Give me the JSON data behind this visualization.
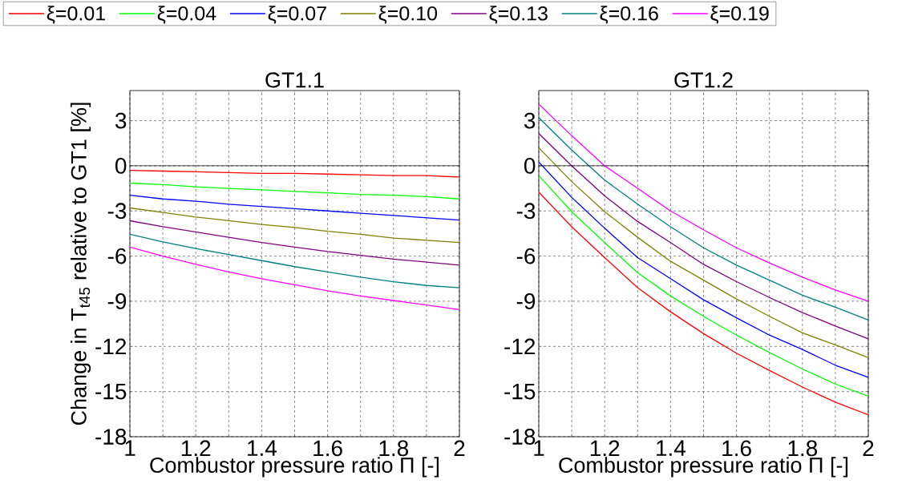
{
  "chart_data": [
    {
      "type": "line",
      "title": "GT1.1",
      "xlabel": "Combustor pressure ratio Π [-]",
      "ylabel": "Change in T$_{t45}$ relative to GT1 [%]",
      "x": [
        1,
        1.1,
        1.2,
        1.3,
        1.4,
        1.5,
        1.6,
        1.7,
        1.8,
        1.9,
        2
      ],
      "xlim": [
        1,
        2
      ],
      "ylim": [
        -18,
        5
      ],
      "xticks": [
        1,
        {
          "value": 1.1,
          "label": null
        },
        1.2,
        {
          "value": 1.3,
          "label": null
        },
        1.4,
        {
          "value": 1.5,
          "label": null
        },
        1.6,
        {
          "value": 1.7,
          "label": null
        },
        1.8,
        {
          "value": 1.9,
          "label": null
        },
        2
      ],
      "yticks": [
        -18,
        -15,
        -12,
        -9,
        -6,
        -3,
        0,
        3
      ],
      "grid": true,
      "legend": "top",
      "marker": "none",
      "line_style": "solid",
      "ref_lines": [
        {
          "axis": "y",
          "value": 0,
          "color": "#000000"
        }
      ],
      "series": [
        {
          "name": "ξ=0.01",
          "color": "#ff0000",
          "values": [
            -0.3,
            -0.35,
            -0.4,
            -0.45,
            -0.5,
            -0.5,
            -0.55,
            -0.6,
            -0.65,
            -0.65,
            -0.75
          ]
        },
        {
          "name": "ξ=0.04",
          "color": "#00ff00",
          "values": [
            -1.15,
            -1.25,
            -1.4,
            -1.5,
            -1.6,
            -1.7,
            -1.8,
            -1.9,
            -1.95,
            -2.05,
            -2.2
          ]
        },
        {
          "name": "ξ=0.07",
          "color": "#0000ff",
          "values": [
            -1.95,
            -2.2,
            -2.35,
            -2.55,
            -2.7,
            -2.85,
            -3.0,
            -3.15,
            -3.3,
            -3.45,
            -3.6
          ]
        },
        {
          "name": "ξ=0.10",
          "color": "#808000",
          "values": [
            -2.8,
            -3.1,
            -3.4,
            -3.65,
            -3.9,
            -4.1,
            -4.35,
            -4.55,
            -4.8,
            -4.95,
            -5.1
          ]
        },
        {
          "name": "ξ=0.13",
          "color": "#800080",
          "values": [
            -3.65,
            -4.05,
            -4.4,
            -4.75,
            -5.1,
            -5.4,
            -5.7,
            -5.95,
            -6.2,
            -6.4,
            -6.6
          ]
        },
        {
          "name": "ξ=0.16",
          "color": "#008080",
          "values": [
            -4.55,
            -5.05,
            -5.5,
            -5.9,
            -6.3,
            -6.7,
            -7.05,
            -7.4,
            -7.7,
            -7.95,
            -8.1
          ]
        },
        {
          "name": "ξ=0.19",
          "color": "#ff00ff",
          "values": [
            -5.4,
            -6.0,
            -6.55,
            -7.05,
            -7.5,
            -7.9,
            -8.3,
            -8.65,
            -8.95,
            -9.25,
            -9.55
          ]
        }
      ]
    },
    {
      "type": "line",
      "title": "GT1.2",
      "xlabel": "Combustor pressure ratio Π [-]",
      "x": [
        1,
        1.1,
        1.2,
        1.3,
        1.4,
        1.5,
        1.6,
        1.7,
        1.8,
        1.9,
        2
      ],
      "xlim": [
        1,
        2
      ],
      "ylim": [
        -18,
        5
      ],
      "xticks": [
        1,
        {
          "value": 1.1,
          "label": null
        },
        1.2,
        {
          "value": 1.3,
          "label": null
        },
        1.4,
        {
          "value": 1.5,
          "label": null
        },
        1.6,
        {
          "value": 1.7,
          "label": null
        },
        1.8,
        {
          "value": 1.9,
          "label": null
        },
        2
      ],
      "yticks": [
        -18,
        -15,
        -12,
        -9,
        -6,
        -3,
        0,
        3
      ],
      "grid": true,
      "marker": "none",
      "line_style": "solid",
      "ref_lines": [
        {
          "axis": "y",
          "value": 0,
          "color": "#000000"
        }
      ],
      "series": [
        {
          "color": "#ff0000",
          "values": [
            -1.75,
            -4.05,
            -6.1,
            -8.1,
            -9.7,
            -11.15,
            -12.45,
            -13.6,
            -14.7,
            -15.7,
            -16.55
          ]
        },
        {
          "color": "#00ff00",
          "values": [
            -0.65,
            -3.05,
            -5.1,
            -7.1,
            -8.65,
            -10.0,
            -11.25,
            -12.4,
            -13.5,
            -14.5,
            -15.3
          ]
        },
        {
          "color": "#0000ff",
          "values": [
            0.25,
            -2.1,
            -4.15,
            -6.1,
            -7.5,
            -8.9,
            -10.1,
            -11.25,
            -12.2,
            -13.25,
            -14.05
          ]
        },
        {
          "color": "#808000",
          "values": [
            1.2,
            -1.05,
            -3.05,
            -4.75,
            -6.35,
            -7.6,
            -8.85,
            -10.0,
            -11.1,
            -11.9,
            -12.75
          ]
        },
        {
          "color": "#800080",
          "values": [
            2.15,
            0,
            -2.0,
            -3.7,
            -5.1,
            -6.55,
            -7.7,
            -8.75,
            -9.75,
            -10.65,
            -11.5
          ]
        },
        {
          "color": "#008080",
          "values": [
            3.2,
            1.05,
            -0.95,
            -2.55,
            -4.05,
            -5.45,
            -6.6,
            -7.6,
            -8.6,
            -9.4,
            -10.25
          ]
        },
        {
          "color": "#ff00ff",
          "values": [
            4.1,
            2.0,
            0,
            -1.5,
            -3.0,
            -4.25,
            -5.45,
            -6.45,
            -7.4,
            -8.25,
            -9.0
          ]
        }
      ]
    }
  ]
}
